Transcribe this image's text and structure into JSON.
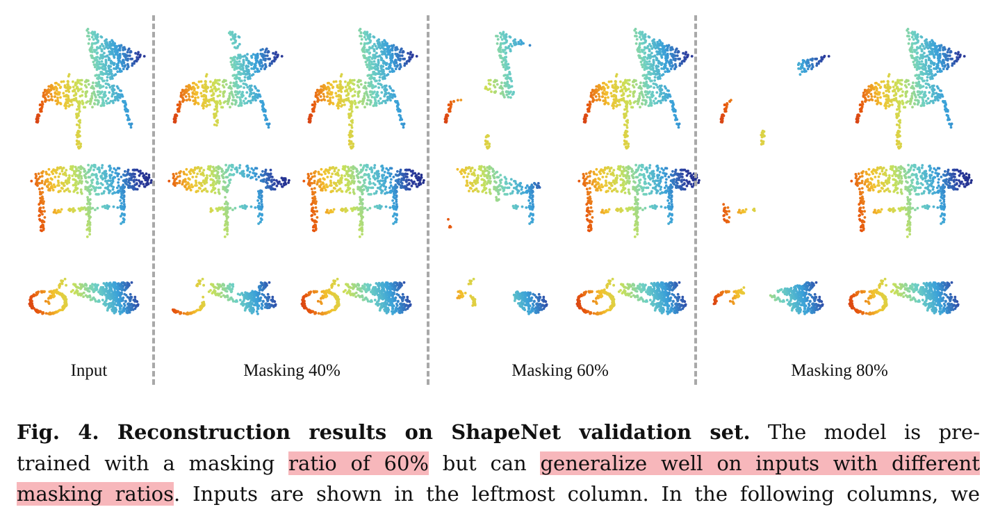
{
  "figure": {
    "columns": [
      {
        "label": "Input",
        "masked_ratio": 0.0
      },
      {
        "label": "Masking 40%",
        "masked_ratio": 0.4
      },
      {
        "label": "Masking 60%",
        "masked_ratio": 0.6
      },
      {
        "label": "Masking 80%",
        "masked_ratio": 0.8
      }
    ],
    "rows": [
      "chair",
      "table",
      "motorbike"
    ],
    "colormap": [
      "#b2182b",
      "#e6550d",
      "#f2c12e",
      "#c8e05a",
      "#6fd0c2",
      "#3aa0d8",
      "#2c3e9f",
      "#1a237e"
    ]
  },
  "caption": {
    "line1": {
      "fig_label": "Fig. 4. Reconstruction results on ShapeNet validation set.",
      "text": " The model is pre-"
    },
    "line2": {
      "text_a": "trained with a masking ",
      "highlight_a": "ratio of 60%",
      "text_b": " but can ",
      "highlight_b": "generalize well on inputs with different"
    },
    "line3": {
      "highlight_c": "masking ratios",
      "text_c": ". Inputs are shown in the leftmost column. In the following columns, we"
    },
    "highlight_color": "#f7b7bb"
  }
}
